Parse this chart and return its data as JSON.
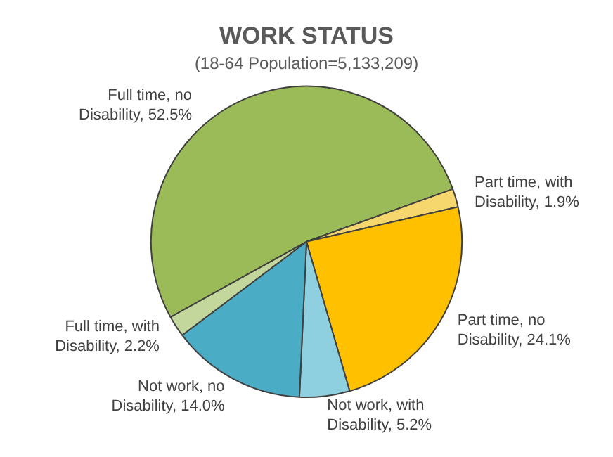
{
  "chart_data": {
    "type": "pie",
    "title": "WORK STATUS",
    "subtitle": "(18-64 Population=5,133,209)",
    "categories": [
      "Full time, no Disability",
      "Part time, with Disability",
      "Part time, no Disability",
      "Not work, with Disability",
      "Not work, no Disability",
      "Full time, with Disability"
    ],
    "values": [
      52.5,
      1.9,
      24.1,
      5.2,
      14.0,
      2.2
    ],
    "value_labels": [
      "52.5%",
      "1.9%",
      "24.1%",
      "5.2%",
      "14.0%",
      "2.2%"
    ],
    "colors": [
      "#9bbb59",
      "#f5d76e",
      "#ffc000",
      "#8ecfe0",
      "#4bacc6",
      "#c3d69b"
    ],
    "legend": false
  }
}
